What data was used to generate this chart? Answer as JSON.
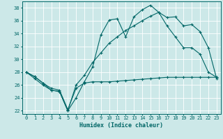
{
  "xlabel": "Humidex (Indice chaleur)",
  "bg_color": "#cce8e8",
  "grid_color": "#b0d0d0",
  "line_color": "#006666",
  "xlim": [
    -0.5,
    23.5
  ],
  "ylim": [
    21.5,
    39.0
  ],
  "xticks": [
    0,
    1,
    2,
    3,
    4,
    5,
    6,
    7,
    8,
    9,
    10,
    11,
    12,
    13,
    14,
    15,
    16,
    17,
    18,
    19,
    20,
    21,
    22,
    23
  ],
  "yticks": [
    22,
    24,
    26,
    28,
    30,
    32,
    34,
    36,
    38
  ],
  "line1_x": [
    0,
    1,
    2,
    3,
    4,
    5,
    6,
    7,
    8,
    9,
    10,
    11,
    12,
    13,
    14,
    15,
    16,
    17,
    18,
    19,
    20,
    21,
    22,
    23
  ],
  "line1_y": [
    28.0,
    27.3,
    26.3,
    25.2,
    25.0,
    22.0,
    24.0,
    26.5,
    28.8,
    33.8,
    36.1,
    36.3,
    33.5,
    36.6,
    37.7,
    38.4,
    37.3,
    36.5,
    36.6,
    35.2,
    35.4,
    34.3,
    31.8,
    27.0
  ],
  "line2_x": [
    0,
    1,
    2,
    3,
    4,
    5,
    6,
    7,
    8,
    9,
    10,
    11,
    12,
    13,
    14,
    15,
    16,
    17,
    18,
    19,
    20,
    21,
    22,
    23
  ],
  "line2_y": [
    28.0,
    27.3,
    26.3,
    25.5,
    25.2,
    22.2,
    25.5,
    26.3,
    26.5,
    26.5,
    26.5,
    26.6,
    26.7,
    26.8,
    26.9,
    27.0,
    27.1,
    27.2,
    27.2,
    27.2,
    27.2,
    27.2,
    27.2,
    27.2
  ],
  "line3_x": [
    0,
    1,
    2,
    3,
    4,
    5,
    6,
    7,
    8,
    9,
    10,
    11,
    12,
    13,
    14,
    15,
    16,
    17,
    18,
    19,
    20,
    21,
    22,
    23
  ],
  "line3_y": [
    28.0,
    27.0,
    26.0,
    25.2,
    25.0,
    22.0,
    26.0,
    27.5,
    29.5,
    31.0,
    32.5,
    33.5,
    34.5,
    35.2,
    36.0,
    36.7,
    37.3,
    35.2,
    33.5,
    31.8,
    31.8,
    30.8,
    28.0,
    27.2
  ]
}
